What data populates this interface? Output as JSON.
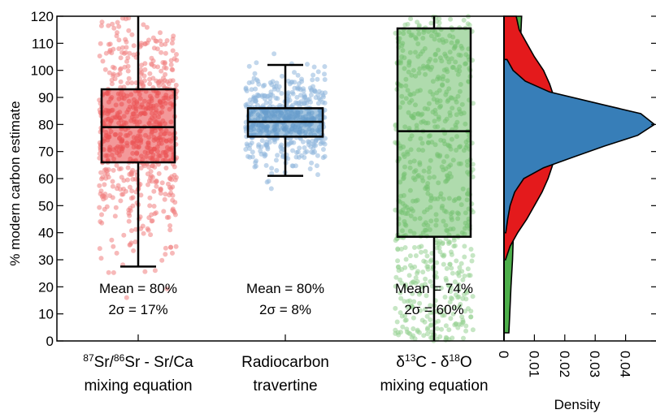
{
  "chart_data": [
    {
      "type": "box",
      "ylabel": "% modern carbon estimate",
      "ylim": [
        0,
        120
      ],
      "yticks": [
        0,
        10,
        20,
        30,
        40,
        50,
        60,
        70,
        80,
        90,
        100,
        110,
        120
      ],
      "categories": [
        {
          "label_line1": "87Sr/86Sr - Sr/Ca",
          "label_line1_parts": {
            "sup1": "87",
            "t1": "Sr/",
            "sup2": "86",
            "t2": "Sr - Sr/Ca"
          },
          "label_line2": "mixing equation",
          "color": "#e41a1c",
          "point_color": "#f08080",
          "whisker_low": 27.5,
          "q1": 66,
          "median": 79,
          "q3": 93,
          "whisker_high": 120,
          "points_range": [
            16,
            120
          ],
          "mean_label": "Mean = 80%",
          "sigma_label": "2σ = 17%"
        },
        {
          "label_line1": "Radiocarbon",
          "label_line2": "travertine",
          "color": "#377eb8",
          "point_color": "#8fb6dc",
          "whisker_low": 61,
          "q1": 75.5,
          "median": 81,
          "q3": 86,
          "whisker_high": 102,
          "points_range": [
            56,
            108
          ],
          "mean_label": "Mean = 80%",
          "sigma_label": "2σ = 8%"
        },
        {
          "label_line1": "δ13C - δ18O",
          "label_line1_parts": {
            "t1": "δ",
            "sup1": "13",
            "t2": "C - δ",
            "sup2": "18",
            "t3": "O"
          },
          "label_line2": "mixing equation",
          "color": "#4daf4a",
          "point_color": "#98d294",
          "whisker_low": 0,
          "q1": 38.5,
          "median": 77.5,
          "q3": 115.5,
          "whisker_high": 120,
          "points_range": [
            0,
            120
          ],
          "mean_label": "Mean = 74%",
          "sigma_label": "2σ = 60%"
        }
      ]
    },
    {
      "type": "area",
      "orientation": "horizontal",
      "xlabel": "Density",
      "xlim": [
        0,
        0.05
      ],
      "xticks": [
        "0",
        "0.01",
        "0.02",
        "0.03",
        "0.04"
      ],
      "xtick_values": [
        0,
        0.01,
        0.02,
        0.03,
        0.04
      ],
      "series": [
        {
          "color": "#4daf4a",
          "y": [
            3,
            10,
            20,
            30,
            40,
            50,
            60,
            70,
            80,
            90,
            100,
            110,
            120
          ],
          "density": [
            0.0016,
            0.0019,
            0.0023,
            0.0028,
            0.0031,
            0.0034,
            0.0038,
            0.0041,
            0.0044,
            0.0047,
            0.005,
            0.0054,
            0.0058
          ]
        },
        {
          "color": "#e41a1c",
          "y": [
            30,
            35,
            40,
            45,
            50,
            55,
            60,
            65,
            70,
            75,
            80,
            85,
            90,
            95,
            100,
            105,
            110,
            115,
            120
          ],
          "density": [
            0.0005,
            0.002,
            0.0045,
            0.0075,
            0.01,
            0.0125,
            0.0145,
            0.016,
            0.017,
            0.0175,
            0.0175,
            0.017,
            0.0165,
            0.015,
            0.013,
            0.01,
            0.0075,
            0.005,
            0.004
          ]
        },
        {
          "color": "#377eb8",
          "y": [
            40,
            45,
            50,
            55,
            60,
            64,
            68,
            72,
            76,
            80,
            84,
            88,
            92,
            96,
            100,
            104
          ],
          "density": [
            0.0006,
            0.0012,
            0.002,
            0.0035,
            0.0065,
            0.013,
            0.023,
            0.033,
            0.044,
            0.0495,
            0.045,
            0.03,
            0.015,
            0.007,
            0.003,
            0.001
          ]
        }
      ]
    }
  ]
}
